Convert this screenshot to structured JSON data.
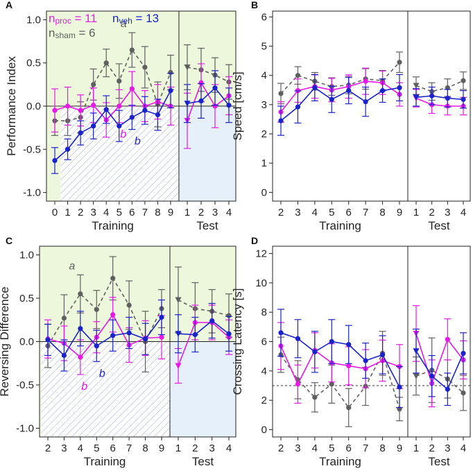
{
  "legend": {
    "n_proc": "n",
    "n_proc_sub": "proc",
    "n_proc_val": " = 11",
    "n_veh": "n",
    "n_veh_sub": "veh",
    "n_veh_val": " = 13",
    "n_sham": "n",
    "n_sham_sub": "sham",
    "n_sham_val": " = 6"
  },
  "colors": {
    "proc": "#e619e6",
    "veh": "#1a22cc",
    "sham": "#5f5f5f",
    "train_bg": "#ecf7dc",
    "test_bg": "#e6f0fb",
    "hatch": "#9aaed6"
  },
  "chart_data": [
    {
      "panel": "A",
      "type": "line",
      "ylabel": "Performance Index",
      "ylim": [
        -1.1,
        1.1
      ],
      "yticks": [
        "-1.0",
        "-0.5",
        "0.0",
        "0.5",
        "1.0"
      ],
      "ytick_values": [
        -1.0,
        -0.5,
        0.0,
        0.5,
        1.0
      ],
      "training_label": "Training",
      "test_label": "Test",
      "training_x": [
        "0",
        "1",
        "2",
        "3",
        "4",
        "5",
        "6",
        "7",
        "8",
        "9"
      ],
      "test_x": [
        "1",
        "2",
        "3",
        "4"
      ],
      "series": [
        {
          "name": "sham",
          "training": [
            -0.17,
            -0.17,
            -0.13,
            0.25,
            0.5,
            0.29,
            0.65,
            0.45,
            0.02,
            0.39
          ],
          "test": [
            0.45,
            0.42,
            0.36,
            0.28
          ],
          "training_err": [
            0.17,
            0.17,
            0.18,
            0.18,
            0.16,
            0.2,
            0.2,
            0.24,
            0.26,
            0.2
          ],
          "test_err": [
            0.26,
            0.25,
            0.2,
            0.2
          ]
        },
        {
          "name": "proc",
          "training": [
            -0.05,
            0.0,
            -0.05,
            0.01,
            -0.16,
            0.0,
            0.2,
            0.0,
            0.05,
            0.0
          ],
          "test": [
            -0.17,
            0.27,
            0.0,
            0.12
          ],
          "training_err": [
            0.25,
            0.22,
            0.18,
            0.2,
            0.2,
            0.19,
            0.2,
            0.18,
            0.2,
            0.22
          ],
          "test_err": [
            0.32,
            0.22,
            0.25,
            0.22
          ]
        },
        {
          "name": "veh",
          "training": [
            -0.63,
            -0.5,
            -0.31,
            -0.23,
            -0.04,
            -0.23,
            -0.13,
            -0.05,
            -0.1,
            0.18
          ],
          "test": [
            0.03,
            0.06,
            0.21,
            0.01
          ],
          "training_err": [
            0.15,
            0.12,
            0.14,
            0.15,
            0.16,
            0.18,
            0.14,
            0.16,
            0.18,
            0.2
          ],
          "test_err": [
            0.22,
            0.2,
            0.2,
            0.2
          ]
        }
      ],
      "annotations": [
        {
          "text": "a",
          "series": "sham",
          "x": "6"
        },
        {
          "text": "b",
          "series": "proc",
          "x": "5"
        },
        {
          "text": "b",
          "series": "veh",
          "x": "6"
        }
      ]
    },
    {
      "panel": "B",
      "type": "line",
      "ylabel": "Speed [cm/s]",
      "ylim": [
        -0.3,
        6.2
      ],
      "yticks": [
        "0",
        "1",
        "2",
        "3",
        "4",
        "5",
        "6"
      ],
      "ytick_values": [
        0,
        1,
        2,
        3,
        4,
        5,
        6
      ],
      "training_label": "Training",
      "test_label": "Test",
      "training_x": [
        "2",
        "3",
        "4",
        "5",
        "6",
        "7",
        "8",
        "9"
      ],
      "test_x": [
        "1",
        "2",
        "3",
        "4"
      ],
      "series": [
        {
          "name": "sham",
          "training": [
            3.38,
            4.0,
            3.8,
            3.62,
            3.67,
            3.88,
            3.82,
            4.45
          ],
          "test": [
            3.65,
            3.45,
            3.58,
            3.82
          ],
          "training_err": [
            0.35,
            0.3,
            0.3,
            0.3,
            0.3,
            0.35,
            0.35,
            0.35
          ],
          "test_err": [
            0.3,
            0.3,
            0.3,
            0.3
          ]
        },
        {
          "name": "proc",
          "training": [
            2.75,
            3.48,
            3.62,
            3.5,
            3.62,
            3.8,
            3.75,
            3.35
          ],
          "test": [
            3.22,
            3.0,
            2.95,
            2.95
          ],
          "training_err": [
            0.35,
            0.4,
            0.4,
            0.4,
            0.4,
            0.45,
            0.4,
            0.4
          ],
          "test_err": [
            0.3,
            0.3,
            0.3,
            0.3
          ]
        },
        {
          "name": "veh",
          "training": [
            2.45,
            2.92,
            3.58,
            3.18,
            3.48,
            3.1,
            3.48,
            3.58
          ],
          "test": [
            3.25,
            3.3,
            3.22,
            3.18
          ],
          "training_err": [
            0.5,
            0.55,
            0.45,
            0.45,
            0.45,
            0.5,
            0.4,
            0.45
          ],
          "test_err": [
            0.3,
            0.3,
            0.3,
            0.3
          ]
        }
      ],
      "annotations": []
    },
    {
      "panel": "C",
      "type": "line",
      "ylabel": "Reversing Difference",
      "ylim": [
        -1.1,
        1.1
      ],
      "yticks": [
        "-1.0",
        "-0.5",
        "0.0",
        "0.5",
        "1.0"
      ],
      "ytick_values": [
        -1.0,
        -0.5,
        0.0,
        0.5,
        1.0
      ],
      "training_label": "Training",
      "test_label": "Test",
      "training_x": [
        "2",
        "3",
        "4",
        "5",
        "6",
        "7",
        "8",
        "9"
      ],
      "test_x": [
        "1",
        "2",
        "3",
        "4"
      ],
      "series": [
        {
          "name": "sham",
          "training": [
            -0.05,
            0.27,
            0.55,
            0.37,
            0.73,
            0.42,
            0.0,
            0.38
          ],
          "test": [
            0.48,
            0.38,
            0.35,
            0.3
          ],
          "training_err": [
            0.25,
            0.27,
            0.22,
            0.22,
            0.25,
            0.28,
            0.35,
            0.22
          ],
          "test_err": [
            0.38,
            0.3,
            0.25,
            0.25
          ]
        },
        {
          "name": "proc",
          "training": [
            0.03,
            -0.02,
            -0.18,
            0.05,
            0.31,
            -0.04,
            0.04,
            0.05
          ],
          "test": [
            -0.28,
            0.22,
            0.22,
            0.05
          ],
          "training_err": [
            0.22,
            0.2,
            0.2,
            0.18,
            0.2,
            0.2,
            0.2,
            0.25
          ],
          "test_err": [
            0.2,
            0.2,
            0.2,
            0.2
          ]
        },
        {
          "name": "veh",
          "training": [
            0.02,
            -0.16,
            0.15,
            -0.05,
            0.07,
            0.1,
            0.03,
            0.28
          ],
          "test": [
            0.09,
            0.08,
            0.24,
            0.09
          ],
          "training_err": [
            0.18,
            0.18,
            0.2,
            0.18,
            0.18,
            0.18,
            0.18,
            0.2
          ],
          "test_err": [
            0.22,
            0.2,
            0.2,
            0.2
          ]
        }
      ],
      "annotations": [
        {
          "text": "a",
          "series": "sham",
          "x": "4"
        },
        {
          "text": "b",
          "series": "proc",
          "x": "4"
        },
        {
          "text": "b",
          "series": "veh",
          "x": "5"
        }
      ]
    },
    {
      "panel": "D",
      "type": "line",
      "ylabel": "Crossing Latency [s]",
      "ylim": [
        -0.5,
        12.5
      ],
      "yticks": [
        "0",
        "2",
        "4",
        "6",
        "8",
        "10",
        "12"
      ],
      "ytick_values": [
        0,
        2,
        4,
        6,
        8,
        10,
        12
      ],
      "training_label": "Training",
      "test_label": "Test",
      "training_x": [
        "2",
        "3",
        "4",
        "5",
        "6",
        "7",
        "8",
        "9"
      ],
      "test_x": [
        "1",
        "2",
        "3",
        "4"
      ],
      "reference_line": 3.0,
      "series": [
        {
          "name": "sham",
          "training": [
            5.1,
            3.4,
            2.2,
            3.1,
            1.5,
            2.95,
            5.2,
            1.4
          ],
          "test": [
            3.65,
            4.05,
            3.45,
            2.5
          ],
          "training_err": [
            1.2,
            1.3,
            1.0,
            1.3,
            1.3,
            1.3,
            1.5,
            0.8
          ],
          "test_err": [
            1.3,
            2.2,
            1.3,
            1.2
          ]
        },
        {
          "name": "proc",
          "training": [
            5.7,
            3.1,
            5.4,
            4.55,
            4.35,
            4.15,
            4.7,
            4.3
          ],
          "test": [
            6.55,
            3.15,
            6.15,
            4.75
          ],
          "training_err": [
            1.6,
            1.3,
            1.2,
            1.3,
            1.3,
            1.3,
            1.4,
            1.5
          ],
          "test_err": [
            1.9,
            1.6,
            1.4,
            1.3
          ]
        },
        {
          "name": "veh",
          "training": [
            6.6,
            6.2,
            5.3,
            6.0,
            5.8,
            4.7,
            5.1,
            2.9
          ],
          "test": [
            5.35,
            3.65,
            2.75,
            5.2
          ],
          "training_err": [
            1.6,
            1.3,
            1.4,
            1.5,
            1.3,
            1.2,
            1.3,
            1.4
          ],
          "test_err": [
            1.5,
            1.4,
            1.1,
            1.4
          ]
        }
      ],
      "annotations": []
    }
  ]
}
